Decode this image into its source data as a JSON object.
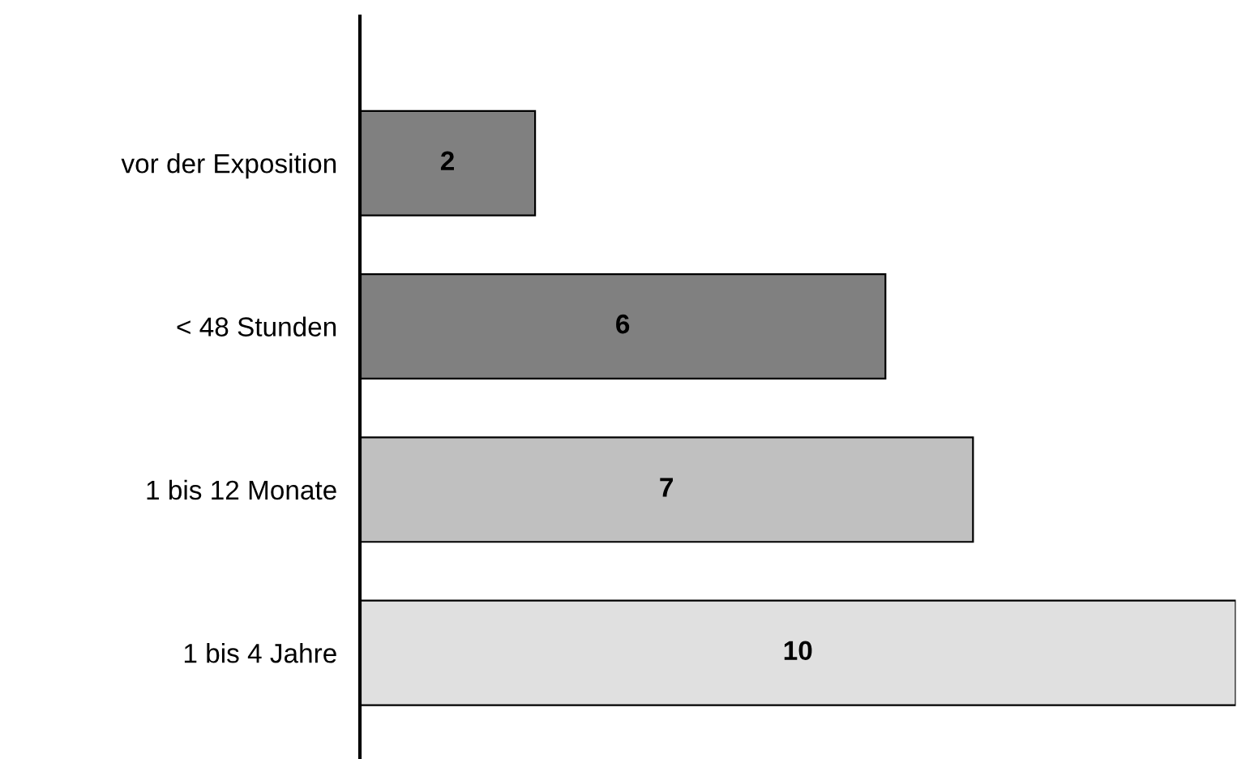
{
  "chart_data": {
    "type": "bar",
    "orientation": "horizontal",
    "categories": [
      "vor der Exposition",
      "< 48 Stunden",
      "1 bis 12 Monate",
      "1 bis 4 Jahre"
    ],
    "values": [
      2,
      6,
      7,
      10
    ],
    "colors": [
      "#808080",
      "#808080",
      "#c0c0c0",
      "#e0e0e0"
    ],
    "data_labels": true,
    "grid": false,
    "legend": false
  }
}
